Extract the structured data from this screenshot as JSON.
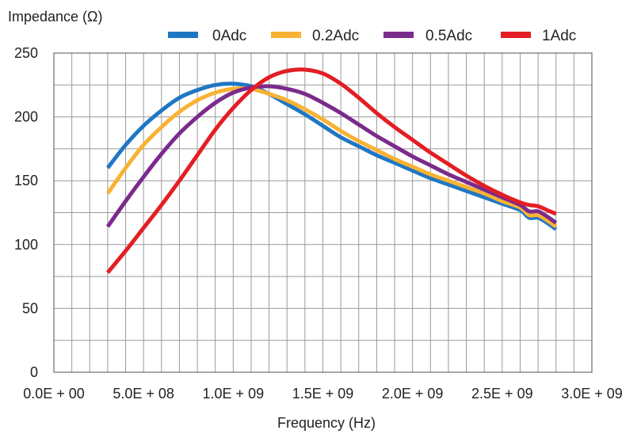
{
  "chart_data": {
    "type": "line",
    "title": "",
    "ylabel": "Impedance (Ω)",
    "xlabel": "Frequency (Hz)",
    "xlim": [
      0,
      3000000000
    ],
    "ylim": [
      0,
      250
    ],
    "x_ticks": [
      0,
      500000000,
      1000000000,
      1500000000,
      2000000000,
      2500000000,
      3000000000
    ],
    "x_tick_labels": [
      "0.0E + 00",
      "5.0E + 08",
      "1.0E + 09",
      "1.5E + 09",
      "2.0E + 09",
      "2.5E + 09",
      "3.0E + 09"
    ],
    "y_ticks": [
      0,
      50,
      100,
      150,
      200,
      250
    ],
    "y_tick_labels": [
      "0",
      "50",
      "100",
      "150",
      "200",
      "250"
    ],
    "grid": true,
    "legend_position": "top",
    "series": [
      {
        "name": "0Adc",
        "color": "#1f77c4",
        "x": [
          300000000,
          400000000,
          500000000,
          600000000,
          700000000,
          800000000,
          900000000,
          1000000000,
          1100000000,
          1200000000,
          1300000000,
          1400000000,
          1500000000,
          1600000000,
          1700000000,
          1800000000,
          1900000000,
          2000000000,
          2100000000,
          2200000000,
          2300000000,
          2400000000,
          2500000000,
          2600000000,
          2650000000,
          2700000000,
          2750000000,
          2800000000
        ],
        "y": [
          160,
          178,
          193,
          205,
          215,
          221,
          225,
          226,
          224,
          218,
          210,
          202,
          193,
          184,
          177,
          170,
          164,
          158,
          152,
          147,
          142,
          137,
          132,
          127,
          121,
          121,
          117,
          112
        ]
      },
      {
        "name": "0.2Adc",
        "color": "#f9b233",
        "x": [
          300000000,
          400000000,
          500000000,
          600000000,
          700000000,
          800000000,
          900000000,
          1000000000,
          1100000000,
          1200000000,
          1300000000,
          1400000000,
          1500000000,
          1600000000,
          1700000000,
          1800000000,
          1900000000,
          2000000000,
          2100000000,
          2200000000,
          2300000000,
          2400000000,
          2500000000,
          2600000000,
          2650000000,
          2700000000,
          2750000000,
          2800000000
        ],
        "y": [
          140,
          160,
          178,
          192,
          204,
          213,
          219,
          222,
          222,
          218,
          213,
          206,
          198,
          189,
          181,
          174,
          167,
          161,
          155,
          150,
          145,
          140,
          134,
          129,
          123,
          123,
          119,
          114
        ]
      },
      {
        "name": "0.5Adc",
        "color": "#7b2b8b",
        "x": [
          300000000,
          400000000,
          500000000,
          600000000,
          700000000,
          800000000,
          900000000,
          1000000000,
          1100000000,
          1200000000,
          1300000000,
          1400000000,
          1500000000,
          1600000000,
          1700000000,
          1800000000,
          1900000000,
          2000000000,
          2100000000,
          2200000000,
          2300000000,
          2400000000,
          2500000000,
          2600000000,
          2650000000,
          2700000000,
          2750000000,
          2800000000
        ],
        "y": [
          114,
          134,
          153,
          171,
          187,
          200,
          211,
          219,
          223,
          224,
          222,
          218,
          211,
          203,
          194,
          185,
          177,
          169,
          162,
          155,
          149,
          143,
          137,
          131,
          126,
          126,
          122,
          117
        ]
      },
      {
        "name": "1Adc",
        "color": "#e31e24",
        "x": [
          300000000,
          400000000,
          500000000,
          600000000,
          700000000,
          800000000,
          900000000,
          1000000000,
          1100000000,
          1200000000,
          1300000000,
          1400000000,
          1500000000,
          1600000000,
          1700000000,
          1800000000,
          1900000000,
          2000000000,
          2100000000,
          2200000000,
          2300000000,
          2400000000,
          2500000000,
          2600000000,
          2650000000,
          2700000000,
          2750000000,
          2800000000
        ],
        "y": [
          78,
          95,
          113,
          131,
          150,
          170,
          190,
          207,
          221,
          231,
          236,
          237,
          234,
          226,
          215,
          203,
          192,
          182,
          172,
          163,
          154,
          146,
          139,
          133,
          131,
          130,
          127,
          124
        ]
      }
    ]
  }
}
